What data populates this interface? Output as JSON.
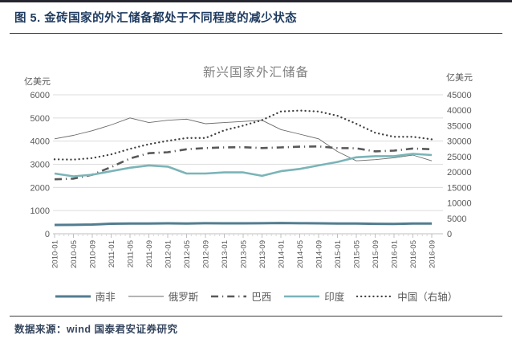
{
  "header": {
    "title": "图 5. 金砖国家的外汇储备都处于不同程度的减少状态"
  },
  "footer": {
    "source": "数据来源：wind 国泰君安证券研究"
  },
  "chart_data": {
    "type": "line",
    "title": "新兴国家外汇储备",
    "grid": "horizontal",
    "legend_position": "bottom",
    "left_axis": {
      "label": "亿美元",
      "min": 0,
      "max": 6000,
      "ticks": [
        0,
        1000,
        2000,
        3000,
        4000,
        5000,
        6000
      ]
    },
    "right_axis": {
      "label": "亿美元",
      "min": 0,
      "max": 45000,
      "ticks": [
        0,
        5000,
        10000,
        15000,
        20000,
        25000,
        30000,
        35000,
        40000,
        45000
      ]
    },
    "categories": [
      "2010-01",
      "2010-05",
      "2010-09",
      "2011-01",
      "2011-05",
      "2011-09",
      "2012-01",
      "2012-05",
      "2012-09",
      "2013-01",
      "2013-05",
      "2013-09",
      "2014-01",
      "2014-05",
      "2014-09",
      "2015-01",
      "2015-05",
      "2015-09",
      "2016-01",
      "2016-05",
      "2016-09"
    ],
    "series": [
      {
        "name": "南非",
        "key": "south-africa",
        "axis": "left",
        "style": "solid",
        "color": "#527d90",
        "width": 3,
        "values": [
          380,
          385,
          400,
          435,
          440,
          445,
          450,
          445,
          455,
          450,
          450,
          455,
          465,
          455,
          450,
          440,
          445,
          430,
          425,
          440,
          445
        ]
      },
      {
        "name": "俄罗斯",
        "key": "russia",
        "axis": "left",
        "style": "solid",
        "color": "#6a6a6a",
        "width": 0.9,
        "values": [
          4100,
          4250,
          4450,
          4700,
          5000,
          4800,
          4900,
          4950,
          4750,
          4800,
          4850,
          4900,
          4500,
          4300,
          4100,
          3550,
          3150,
          3200,
          3280,
          3400,
          3150
        ]
      },
      {
        "name": "巴西",
        "key": "brazil",
        "axis": "left",
        "style": "dashdot",
        "color": "#595959",
        "width": 2.6,
        "values": [
          2350,
          2380,
          2550,
          2880,
          3250,
          3480,
          3520,
          3650,
          3700,
          3730,
          3740,
          3700,
          3730,
          3760,
          3770,
          3700,
          3690,
          3560,
          3590,
          3680,
          3650
        ]
      },
      {
        "name": "印度",
        "key": "india",
        "axis": "left",
        "style": "solid",
        "color": "#7ab4b8",
        "width": 2.6,
        "values": [
          2600,
          2480,
          2550,
          2700,
          2850,
          2950,
          2900,
          2600,
          2600,
          2650,
          2650,
          2500,
          2700,
          2800,
          2950,
          3100,
          3300,
          3350,
          3350,
          3450,
          3400
        ]
      },
      {
        "name": "中国（右轴）",
        "key": "china",
        "axis": "right",
        "style": "dotted",
        "color": "#404040",
        "width": 2.3,
        "values": [
          24100,
          24000,
          24500,
          25700,
          27500,
          29000,
          30100,
          31000,
          31000,
          33500,
          35000,
          36800,
          39600,
          39900,
          39600,
          38200,
          35600,
          32700,
          31400,
          31400,
          30600
        ]
      }
    ]
  }
}
